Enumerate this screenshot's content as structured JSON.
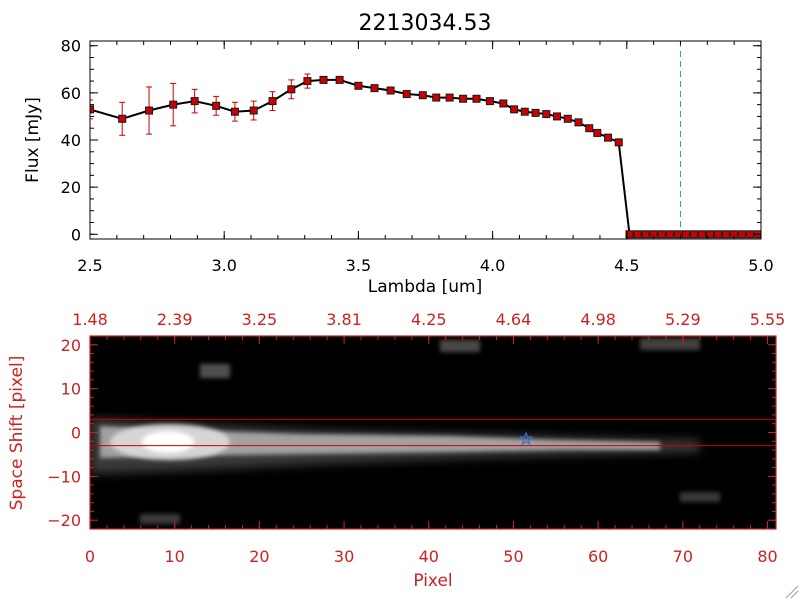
{
  "title": "2213034.53",
  "colors": {
    "series_line": "#000000",
    "marker_fill": "#cc0000",
    "error_bar": "#cc0000",
    "cutoff_line": "#2aa7b8",
    "zero_line": "#cc0000",
    "image_axes": "#cc2222",
    "extraction_box": "#cc0000",
    "star_marker": "#3a6ed8"
  },
  "chart_data": [
    {
      "type": "line",
      "title": "2213034.53",
      "xlabel": "Lambda [um]",
      "ylabel": "Flux [mJy]",
      "xlim": [
        2.5,
        5.0
      ],
      "ylim": [
        -2,
        82
      ],
      "x_ticks": [
        2.5,
        3.0,
        3.5,
        4.0,
        4.5,
        5.0
      ],
      "x_tick_labels": [
        "2.5",
        "3.0",
        "3.5",
        "4.0",
        "4.5",
        "5.0"
      ],
      "y_ticks": [
        0,
        20,
        40,
        60,
        80
      ],
      "y_tick_labels": [
        "0",
        "20",
        "40",
        "60",
        "80"
      ],
      "vertical_line_x": 4.7,
      "zero_line_start_x": 4.7,
      "grid": false,
      "series": [
        {
          "x": [
            2.5,
            2.62,
            2.72,
            2.81,
            2.89,
            2.97,
            3.04,
            3.11,
            3.18,
            3.25,
            3.31,
            3.37,
            3.43,
            3.5,
            3.56,
            3.62,
            3.68,
            3.74,
            3.79,
            3.84,
            3.89,
            3.94,
            3.99,
            4.04,
            4.08,
            4.12,
            4.16,
            4.2,
            4.24,
            4.28,
            4.32,
            4.36,
            4.39,
            4.43,
            4.47,
            4.51,
            4.54,
            4.57,
            4.6,
            4.63,
            4.66,
            4.69,
            4.72,
            4.75,
            4.78,
            4.81,
            4.84,
            4.87,
            4.9,
            4.93,
            4.96,
            4.99
          ],
          "y": [
            53,
            49,
            52.5,
            55,
            56.5,
            54.5,
            52,
            52.5,
            56.5,
            61.5,
            65,
            65.5,
            65.5,
            63,
            62,
            61,
            59.5,
            59,
            58,
            58,
            57.5,
            57.5,
            56.5,
            55.5,
            53,
            52,
            51.5,
            51,
            50,
            49,
            47.5,
            45,
            43,
            41,
            39,
            0,
            0,
            0,
            0,
            0,
            0,
            0,
            0,
            0,
            0,
            0,
            0,
            0,
            0,
            0,
            0,
            0
          ],
          "yerr": [
            4,
            7,
            10,
            9,
            5,
            4,
            4,
            4,
            4,
            4,
            3,
            0,
            0,
            0,
            0,
            0,
            0,
            0,
            0,
            0,
            0,
            0,
            0,
            0,
            0,
            0,
            0,
            0,
            0,
            0,
            0,
            0,
            0,
            0,
            0,
            0,
            0,
            0,
            0,
            0,
            0,
            0,
            0,
            0,
            0,
            0,
            0,
            0,
            0,
            0,
            0,
            0
          ]
        }
      ]
    },
    {
      "type": "heatmap",
      "xlabel": "Pixel",
      "ylabel": "Space Shift [pixel]",
      "xlim": [
        0,
        81
      ],
      "ylim": [
        -22,
        22
      ],
      "x_ticks": [
        0,
        10,
        20,
        30,
        40,
        50,
        60,
        70,
        80
      ],
      "x_tick_labels": [
        "0",
        "10",
        "20",
        "30",
        "40",
        "50",
        "60",
        "70",
        "80"
      ],
      "y_ticks": [
        -20,
        -10,
        0,
        10,
        20
      ],
      "y_tick_labels": [
        "−20",
        "−10",
        "0",
        "10",
        "20"
      ],
      "top_axis_label_values": [
        1.48,
        2.39,
        3.25,
        3.81,
        4.25,
        4.64,
        4.98,
        5.29,
        5.55
      ],
      "top_axis_tick_labels": [
        "1.48",
        "2.39",
        "3.25",
        "3.81",
        "4.25",
        "4.64",
        "4.98",
        "5.29",
        "5.55"
      ],
      "extraction_rows": [
        3,
        -3
      ],
      "trace_center_y": -0.5,
      "trace_peak_x": 9,
      "marker_position": [
        51.5,
        -1.5
      ],
      "colormap": "grayscale",
      "grid": false
    }
  ]
}
